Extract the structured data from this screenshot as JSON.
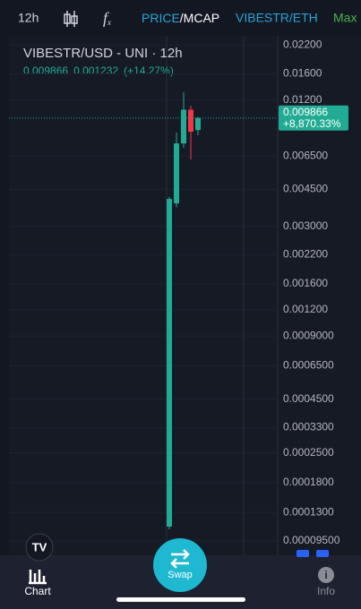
{
  "toolbar": {
    "interval": "12h",
    "price": "PRICE",
    "mcap": "/MCAP",
    "pair": "VIBESTR/ETH",
    "range": "Max"
  },
  "chart_data": {
    "type": "candlestick",
    "title": "VIBESTR/USD - UNI · 12h",
    "last_price": "0.009866",
    "change": "0.001232",
    "change_pct": "(+14.27%)",
    "price_line": 0.009866,
    "price_label": "0.009866",
    "price_change_label": "+8,870.33%",
    "categories": [
      null,
      null,
      null,
      null,
      null
    ],
    "open": [
      0.0001112,
      0.00386,
      0.00746,
      0.0108,
      0.008634
    ],
    "high": [
      0.00415,
      0.0084,
      0.01306,
      0.01128,
      0.01
    ],
    "low": [
      0.000108,
      0.0037,
      0.00711,
      0.00625,
      0.00815
    ],
    "close": [
      0.004056,
      0.00746,
      0.0108,
      0.00848,
      0.009866
    ],
    "up_color": "#22ab94",
    "down_color": "#f23645",
    "log_scale": true,
    "grid": true,
    "ylim": [
      8.28e-05,
      0.0243
    ],
    "yticks": [
      {
        "value": 0.022,
        "label": "0.02200"
      },
      {
        "value": 0.016,
        "label": "0.01600"
      },
      {
        "value": 0.012,
        "label": "0.01200"
      },
      {
        "value": 0.0065,
        "label": "0.006500"
      },
      {
        "value": 0.0045,
        "label": "0.004500"
      },
      {
        "value": 0.003,
        "label": "0.003000"
      },
      {
        "value": 0.0022,
        "label": "0.002200"
      },
      {
        "value": 0.0016,
        "label": "0.001600"
      },
      {
        "value": 0.0012,
        "label": "0.001200"
      },
      {
        "value": 0.0009,
        "label": "0.0009000"
      },
      {
        "value": 0.00065,
        "label": "0.0006500"
      },
      {
        "value": 0.00045,
        "label": "0.0004500"
      },
      {
        "value": 0.00033,
        "label": "0.0003300"
      },
      {
        "value": 0.00025,
        "label": "0.0002500"
      },
      {
        "value": 0.00018,
        "label": "0.0001800"
      },
      {
        "value": 0.00013,
        "label": "0.0001300"
      },
      {
        "value": 9.5e-05,
        "label": "0.00009500"
      }
    ]
  },
  "nav": {
    "chart": "Chart",
    "swap": "Swap",
    "info": "Info"
  }
}
